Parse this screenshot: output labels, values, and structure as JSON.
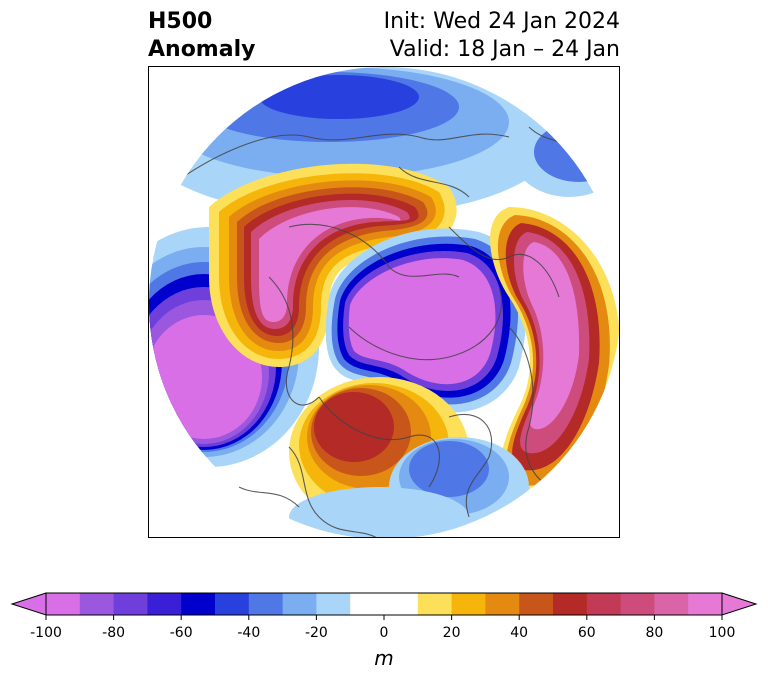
{
  "title": {
    "left_line1": "H500",
    "left_line2": "Anomaly",
    "right_line1": "Init: Wed 24 Jan 2024",
    "right_line2": "Valid: 18 Jan – 24 Jan"
  },
  "colorbar": {
    "unit": "m",
    "ticks": [
      "-100",
      "-80",
      "-60",
      "-40",
      "-20",
      "0",
      "20",
      "40",
      "60",
      "80",
      "100"
    ],
    "min": -100,
    "max": 100,
    "step": 10,
    "colors": [
      "#d86fe6",
      "#9b58de",
      "#6f3fdb",
      "#3a1fd8",
      "#0000cc",
      "#2840dd",
      "#4f77e6",
      "#7aaef0",
      "#a9d6f8",
      "#ffffff",
      "#ffffff",
      "#fde05a",
      "#f5b50a",
      "#e58a10",
      "#c8561a",
      "#b32a26",
      "#c23a55",
      "#cd4c7c",
      "#d964a8",
      "#e679d6"
    ]
  },
  "map": {
    "projection": "north-polar-stereographic",
    "features": [
      {
        "label": "positive-anomaly-north-pacific-alaska",
        "peak": 100
      },
      {
        "label": "negative-anomaly-north-pole-siberia",
        "peak": -100
      },
      {
        "label": "negative-anomaly-northwest-pacific",
        "peak": -100
      },
      {
        "label": "positive-anomaly-europe-north-atlantic",
        "peak": 100
      },
      {
        "label": "positive-anomaly-central-asia",
        "peak": 60
      },
      {
        "label": "negative-anomaly-eastern-asia",
        "peak": -70
      }
    ]
  }
}
